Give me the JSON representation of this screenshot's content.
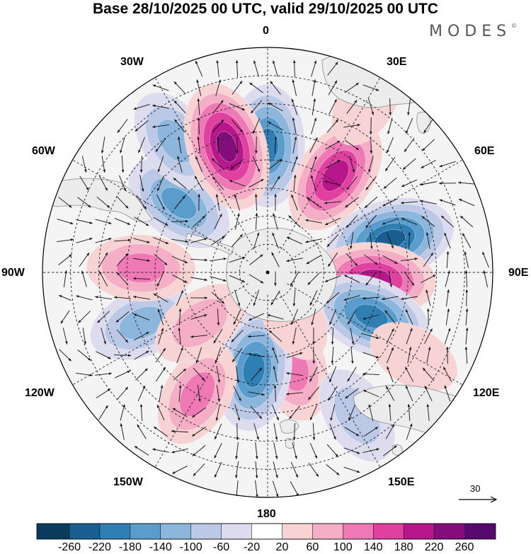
{
  "title": "Base 28/10/2025 00 UTC, valid 29/10/2025 00 UTC",
  "logo": {
    "text": "MODES",
    "mark": "©"
  },
  "longitude_labels": {
    "lon_0": "0",
    "lon_30e": "30E",
    "lon_60e": "60E",
    "lon_90e": "90E",
    "lon_120e": "120E",
    "lon_150e": "150E",
    "lon_180": "180",
    "lon_150w": "150W",
    "lon_120w": "120W",
    "lon_90w": "90W",
    "lon_60w": "60W",
    "lon_30w": "30W"
  },
  "wind_reference": {
    "value": "30",
    "icon": "arrow-right-icon"
  },
  "colorbar": {
    "labels": [
      "-260",
      "-220",
      "-180",
      "-140",
      "-100",
      "-60",
      "-20",
      "20",
      "60",
      "100",
      "140",
      "180",
      "220",
      "260"
    ],
    "colors": [
      "#0a3a5c",
      "#1a5f8f",
      "#2f7fb5",
      "#5a9ccb",
      "#8cb6dc",
      "#bcc9e6",
      "#dcdcee",
      "#ffffff",
      "#f7d3d3",
      "#f4aec6",
      "#ee79b4",
      "#e040a0",
      "#b7178a",
      "#840d7c",
      "#560a6e"
    ]
  },
  "map_legend": {
    "land": "#ececec",
    "coast": "#8c8c8c",
    "grid_line": "#222222"
  },
  "anomaly_features": [
    {
      "lon": 0,
      "lat": -45,
      "value": -200
    },
    {
      "lon": 35,
      "lat": -48,
      "value": 210
    },
    {
      "lon": 75,
      "lat": -45,
      "value": -240
    },
    {
      "lon": 94,
      "lat": -52,
      "value": 230
    },
    {
      "lon": 113,
      "lat": -50,
      "value": -200
    },
    {
      "lon": 165,
      "lat": -55,
      "value": 150
    },
    {
      "lon": -172,
      "lat": -55,
      "value": -210
    },
    {
      "lon": -150,
      "lat": -40,
      "value": 120
    },
    {
      "lon": -112,
      "lat": -42,
      "value": -130
    },
    {
      "lon": -88,
      "lat": -45,
      "value": 140
    },
    {
      "lon": -127,
      "lat": -60,
      "value": 110
    },
    {
      "lon": -52,
      "lat": -50,
      "value": -170
    },
    {
      "lon": -35,
      "lat": -33,
      "value": -120
    },
    {
      "lon": -18,
      "lat": -43,
      "value": 250
    },
    {
      "lon": 148,
      "lat": -30,
      "value": -110
    },
    {
      "lon": 30,
      "lat": -20,
      "value": 40
    },
    {
      "lon": 120,
      "lat": -30,
      "value": 40
    },
    {
      "lon": 150,
      "lat": -72,
      "value": 30
    }
  ]
}
